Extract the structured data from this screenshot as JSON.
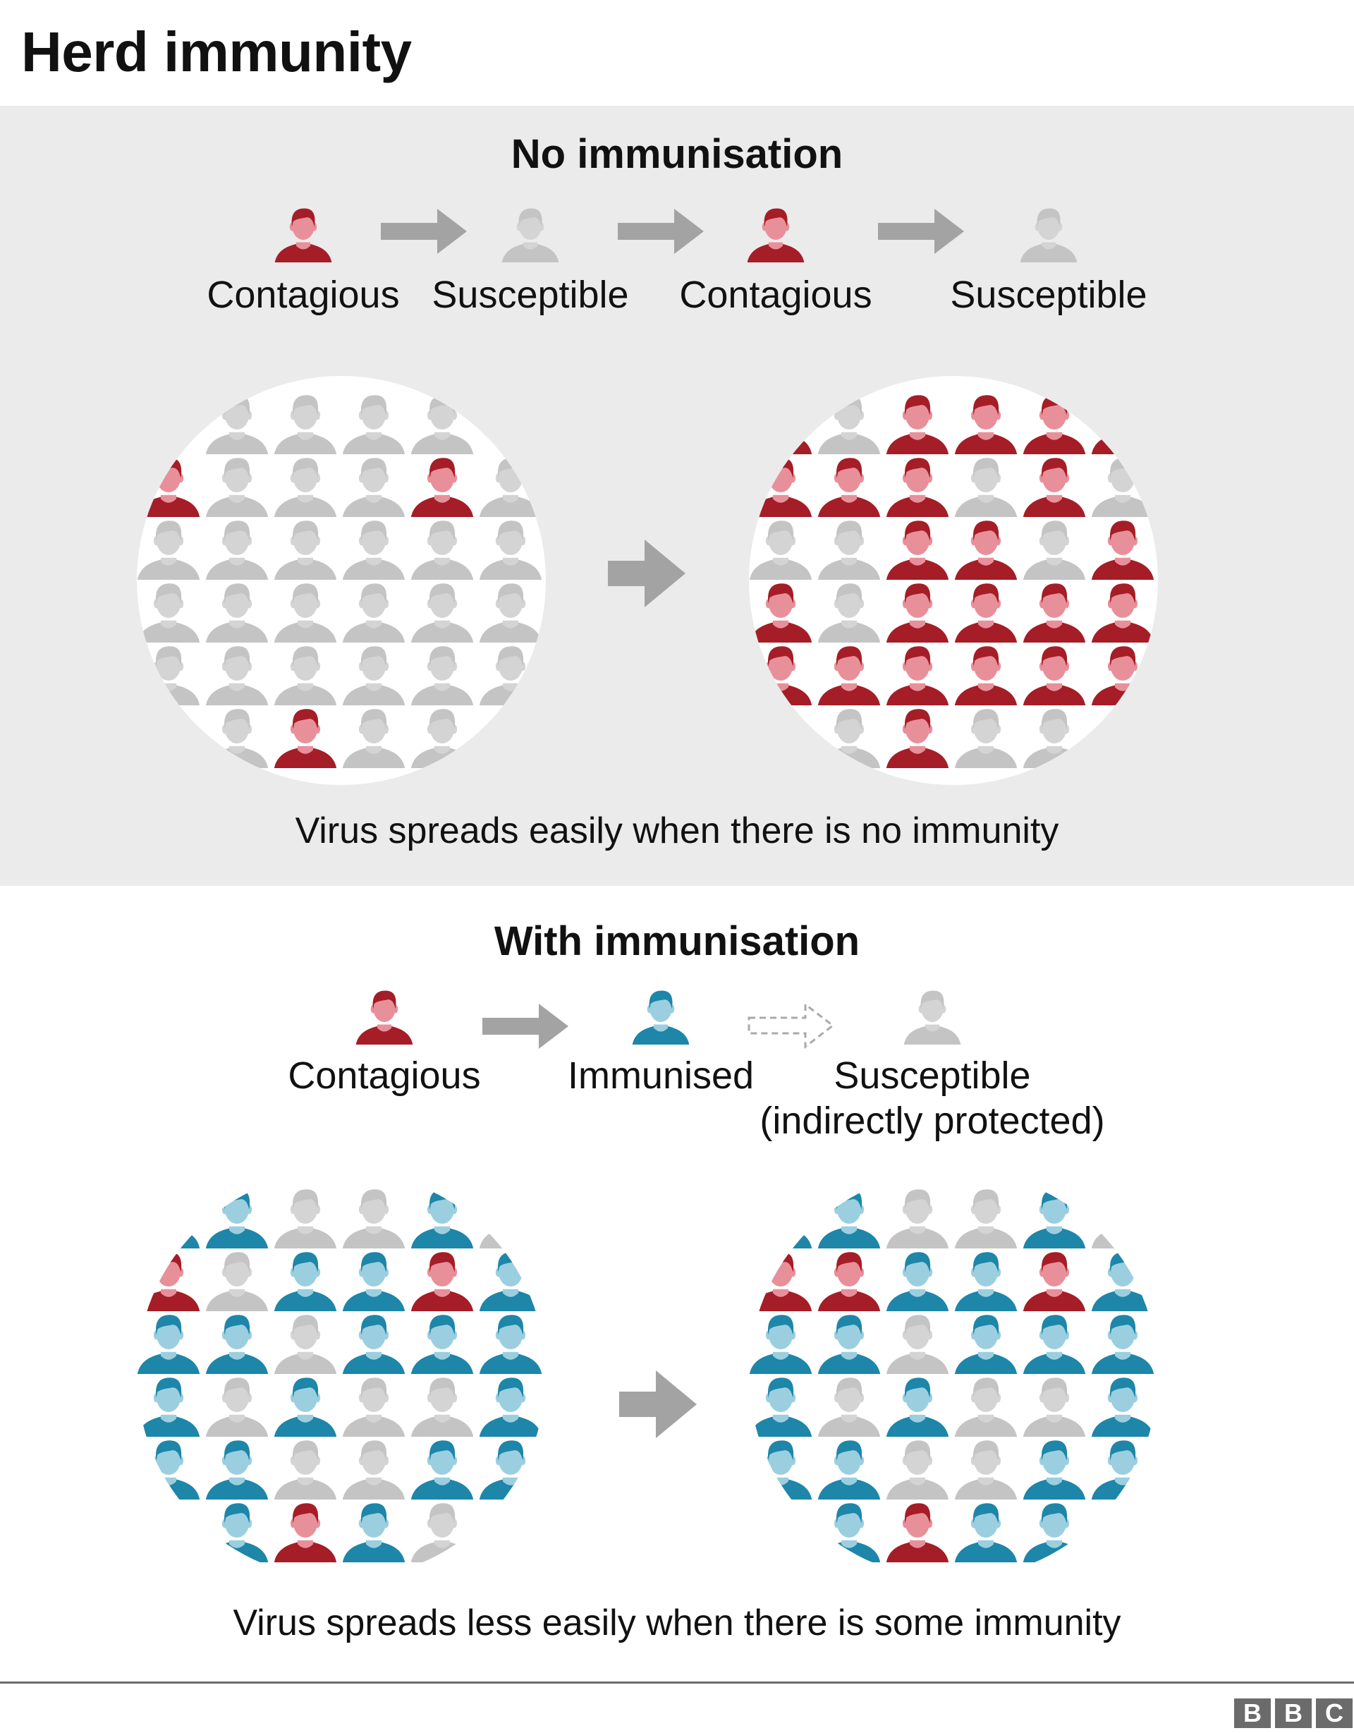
{
  "title": "Herd immunity",
  "colors": {
    "contagious_dark": "#a51d27",
    "contagious_face": "#e8909a",
    "susceptible_dark": "#c4c4c4",
    "susceptible_face": "#d4d4d4",
    "immunised_dark": "#1d86a9",
    "immunised_face": "#9bcfdf",
    "panel_background": "#ebebeb",
    "arrow": "#a3a3a3"
  },
  "section_no": {
    "heading": "No immunisation",
    "legend": [
      {
        "label": "Contagious",
        "icon": "person-contagious-icon"
      },
      {
        "label": "Susceptible",
        "icon": "person-susceptible-icon"
      },
      {
        "label": "Contagious",
        "icon": "person-contagious-icon"
      },
      {
        "label": "Susceptible",
        "icon": "person-susceptible-icon"
      }
    ],
    "caption": "Virus spreads easily when there is no immunity",
    "before": [
      "..SSSS.",
      "CSSSCS",
      "SSSSSS",
      "SSSSSS",
      "SSSSSS",
      "..SCSS."
    ],
    "after": [
      "CSCCCC",
      "CCCSCS",
      "SSCCSC",
      "CSCCCC",
      "CCCCCC",
      "SSCSSS"
    ]
  },
  "section_with": {
    "heading": "With immunisation",
    "legend": [
      {
        "label": "Contagious",
        "icon": "person-contagious-icon"
      },
      {
        "label": "Immunised",
        "icon": "person-immunised-icon"
      },
      {
        "label": "Susceptible",
        "sub": "(indirectly protected)",
        "icon": "person-susceptible-icon"
      }
    ],
    "caption": "Virus spreads less easily when there is some immunity",
    "before": [
      "IISSIS",
      "CSIICI",
      "IISIII",
      "ISISSI",
      "IISSII",
      "IICISS"
    ],
    "after": [
      "IISSIS",
      "CCIICI",
      "IISIII",
      "ISISSI",
      "IISSII",
      "IICIIS"
    ]
  },
  "brand": [
    "B",
    "B",
    "C"
  ]
}
